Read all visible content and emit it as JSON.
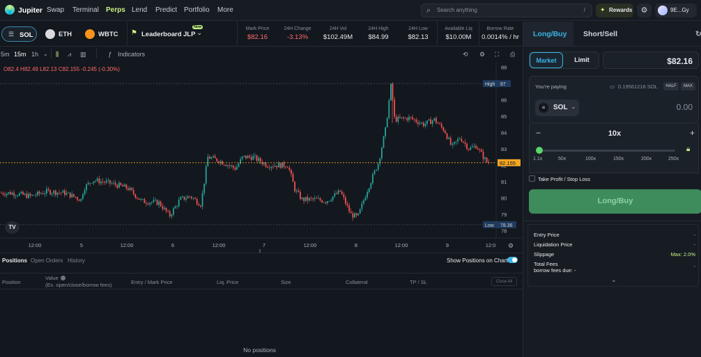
{
  "nav": {
    "brand": "Jupiter",
    "links": [
      "Swap",
      "Terminal",
      "Perps",
      "Lend",
      "Predict",
      "Portfolio",
      "More"
    ],
    "active": "Perps",
    "search_placeholder": "Search anything",
    "search_shortcut": "/",
    "rewards_label": "Rewards",
    "wallet_label": "9E...Gy"
  },
  "market": {
    "tokens": [
      "SOL",
      "ETH",
      "WBTC"
    ],
    "selected": "SOL",
    "leaderboard_label": "Leaderboard",
    "jlp_label": "JLP",
    "new_badge": "New",
    "stats": [
      {
        "key": "Mark Price",
        "value": "$82.16",
        "color": "#ff6b6b"
      },
      {
        "key": "24H Change",
        "value": "-3.13%",
        "color": "#ff6b6b"
      },
      {
        "key": "24H Vol",
        "value": "$102.49M",
        "color": "#e8eaed"
      },
      {
        "key": "24H High",
        "value": "$84.99",
        "color": "#e8eaed"
      },
      {
        "key": "24H Low",
        "value": "$82.13",
        "color": "#e8eaed"
      },
      {
        "key": "Available Liq",
        "value": "$10.00M",
        "color": "#e8eaed"
      },
      {
        "key": "Borrow Rate",
        "value": "0.0014% / hr",
        "color": "#e8eaed"
      }
    ]
  },
  "toolbar": {
    "timeframes": [
      "5m",
      "15m",
      "1h"
    ],
    "selected_tf": "15m",
    "indicators_label": "Indicators"
  },
  "chart": {
    "ohlc": {
      "o_label": "O",
      "o": "82.4",
      "h_label": "H",
      "h": "82.49",
      "l_label": "L",
      "l": "82.13",
      "c_label": "C",
      "c": "82.155",
      "chg": "-0.245 (-0.30%)"
    },
    "high_label": "High",
    "high_value": "87",
    "low_label": "Low",
    "low_value": "78.36",
    "last_price": "82.155",
    "watermark": "TV",
    "x_ticks": [
      "12:00",
      "5",
      "12:00",
      "6",
      "12:00",
      "7",
      "12:00",
      "8",
      "12:00",
      "9",
      "12:0"
    ],
    "y_ticks": [
      "88",
      "87",
      "86",
      "85",
      "84",
      "83",
      "82",
      "81",
      "80",
      "79",
      "78"
    ],
    "colors": {
      "up": "#26a69a",
      "down": "#ef5350",
      "price_line": "#f5a623"
    }
  },
  "chart_data": {
    "type": "candlestick",
    "ylim": [
      77.8,
      88.2
    ],
    "x_ticks": [
      "12:00",
      "5",
      "12:00",
      "6",
      "12:00",
      "7",
      "12:00",
      "8",
      "12:00",
      "9",
      "12:0"
    ],
    "y_ticks": [
      88,
      87,
      86,
      85,
      84,
      83,
      82,
      81,
      80,
      79,
      78
    ],
    "price_path": [
      [
        0,
        80.3
      ],
      [
        20,
        80.3
      ],
      [
        45,
        80.1
      ],
      [
        70,
        80.4
      ],
      [
        95,
        80.3
      ],
      [
        118,
        79.9
      ],
      [
        122,
        80.6
      ],
      [
        135,
        81.1
      ],
      [
        160,
        80.9
      ],
      [
        185,
        80.6
      ],
      [
        205,
        79.8
      ],
      [
        230,
        79.7
      ],
      [
        245,
        78.9
      ],
      [
        260,
        79.9
      ],
      [
        275,
        80.1
      ],
      [
        290,
        79.6
      ],
      [
        300,
        82.5
      ],
      [
        315,
        82.3
      ],
      [
        330,
        82.0
      ],
      [
        340,
        81.8
      ],
      [
        350,
        82.5
      ],
      [
        365,
        82.5
      ],
      [
        385,
        82.0
      ],
      [
        400,
        82.0
      ],
      [
        415,
        82.0
      ],
      [
        425,
        80.5
      ],
      [
        435,
        79.9
      ],
      [
        455,
        79.9
      ],
      [
        470,
        79.8
      ],
      [
        490,
        80.4
      ],
      [
        505,
        79.0
      ],
      [
        515,
        78.8
      ],
      [
        528,
        80.4
      ],
      [
        545,
        82.2
      ],
      [
        555,
        84.2
      ],
      [
        563,
        87.0
      ],
      [
        568,
        84.8
      ],
      [
        590,
        84.9
      ],
      [
        610,
        84.5
      ],
      [
        625,
        84.8
      ],
      [
        640,
        84.1
      ],
      [
        650,
        83.1
      ],
      [
        662,
        83.7
      ],
      [
        675,
        83.0
      ],
      [
        685,
        83.2
      ],
      [
        700,
        82.2
      ]
    ]
  },
  "positions": {
    "tabs": [
      "Positions",
      "Open Orders",
      "History"
    ],
    "toggle_label": "Show Positions on Chart",
    "columns": [
      "Position",
      "Value",
      "Entry / Mark Price",
      "Liq. Price",
      "Size",
      "Collateral",
      "TP / SL"
    ],
    "value_note": "(Ex. open/close/borrow fees)",
    "close_all": "Close All",
    "empty": "No positions"
  },
  "trade": {
    "tabs": [
      "Long/Buy",
      "Short/Sell"
    ],
    "order_types": [
      "Market",
      "Limit"
    ],
    "price": "$82.16",
    "paying_label": "You're paying",
    "balance": "0.19561218 SOL",
    "half": "HALF",
    "max": "MAX",
    "token": "SOL",
    "amount": "0.00",
    "leverage": "10x",
    "leverage_marks": [
      "1.1x",
      "50x",
      "100x",
      "150x",
      "200x",
      "250x"
    ],
    "tpsl_label": "Take Profit / Stop Loss",
    "submit": "Long/Buy",
    "details": {
      "entry_price": "Entry Price",
      "entry_value": "-",
      "liq_price": "Liquidation Price",
      "liq_value": "-",
      "slippage": "Slippage",
      "slippage_value": "Max: 2.0%",
      "total_fees": "Total Fees",
      "total_fees_value": "-",
      "borrow_fees": "borrow fees due: -"
    }
  }
}
